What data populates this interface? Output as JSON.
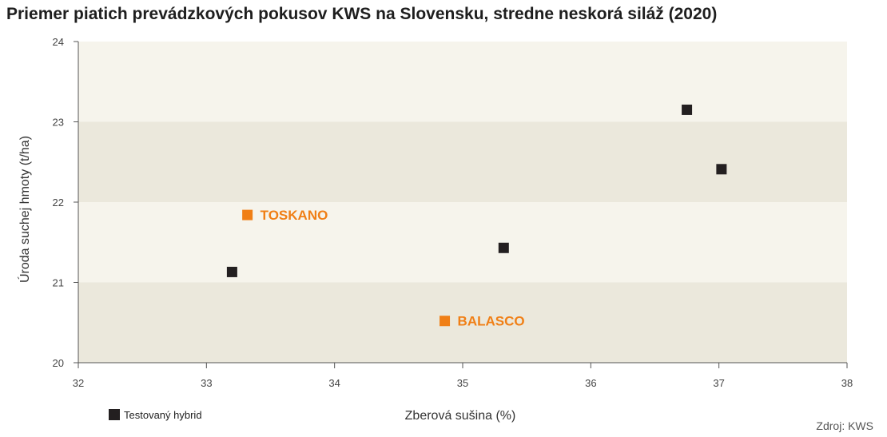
{
  "chart_data": {
    "type": "scatter",
    "title": "Priemer piatich prevádzkových pokusov KWS na Slovensku, stredne neskorá siláž (2020)",
    "xlabel": "Zberová sušina (%)",
    "ylabel": "Úroda suchej hmoty (t/ha)",
    "xlim": [
      32,
      38
    ],
    "ylim": [
      20,
      24
    ],
    "xticks": [
      32,
      33,
      34,
      35,
      36,
      37,
      38
    ],
    "yticks": [
      20,
      21,
      22,
      23,
      24
    ],
    "bands": "alternating",
    "grid": false,
    "legend_position": "bottom-left",
    "series": [
      {
        "name": "Testovaný hybrid",
        "color": "#231f20",
        "marker": "square",
        "points": [
          {
            "x": 33.2,
            "y": 21.13
          },
          {
            "x": 35.32,
            "y": 21.43
          },
          {
            "x": 36.75,
            "y": 23.15
          },
          {
            "x": 37.02,
            "y": 22.41
          }
        ]
      },
      {
        "color": "#f07f16",
        "marker": "square",
        "points": [
          {
            "x": 33.32,
            "y": 21.84,
            "label": "TOSKANO"
          },
          {
            "x": 34.86,
            "y": 20.52,
            "label": "BALASCO"
          }
        ]
      }
    ],
    "colors": {
      "band_light": "#f6f4ec",
      "band_dark": "#ebe8dc",
      "accent": "#f07f16",
      "marker": "#231f20"
    }
  },
  "source": "Zdroj: KWS"
}
